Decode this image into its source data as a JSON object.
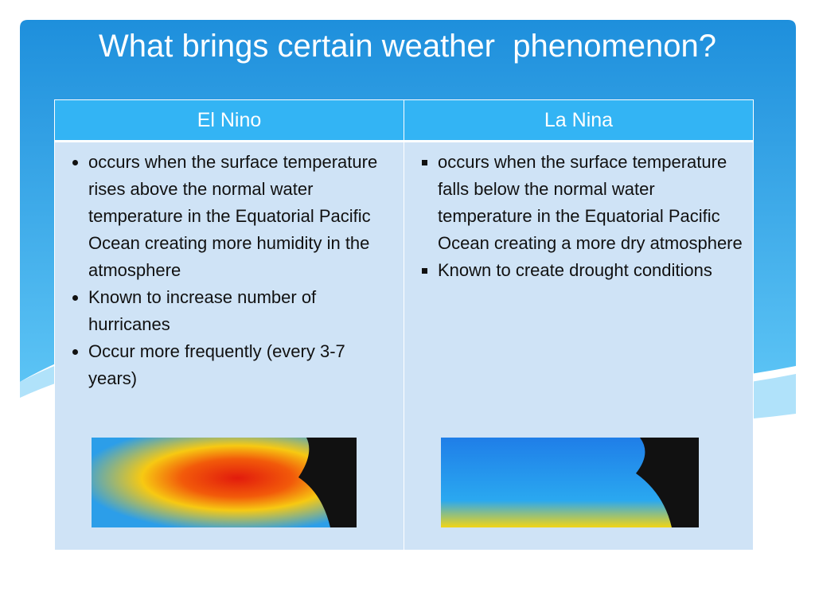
{
  "title": "What brings certain weather  phenomenon?",
  "table": {
    "headers": [
      "El Nino",
      "La Nina"
    ],
    "rows": [
      [
        [
          "occurs when the surface temperature rises above the normal water temperature in the Equatorial Pacific Ocean creating more humidity in the atmosphere",
          "Known to increase number of hurricanes",
          "Occur more frequently (every 3-7 years)"
        ],
        [
          "occurs when the surface temperature falls below the normal water temperature in the Equatorial Pacific Ocean creating a more dry atmosphere",
          "Known to create drought conditions"
        ]
      ]
    ]
  }
}
